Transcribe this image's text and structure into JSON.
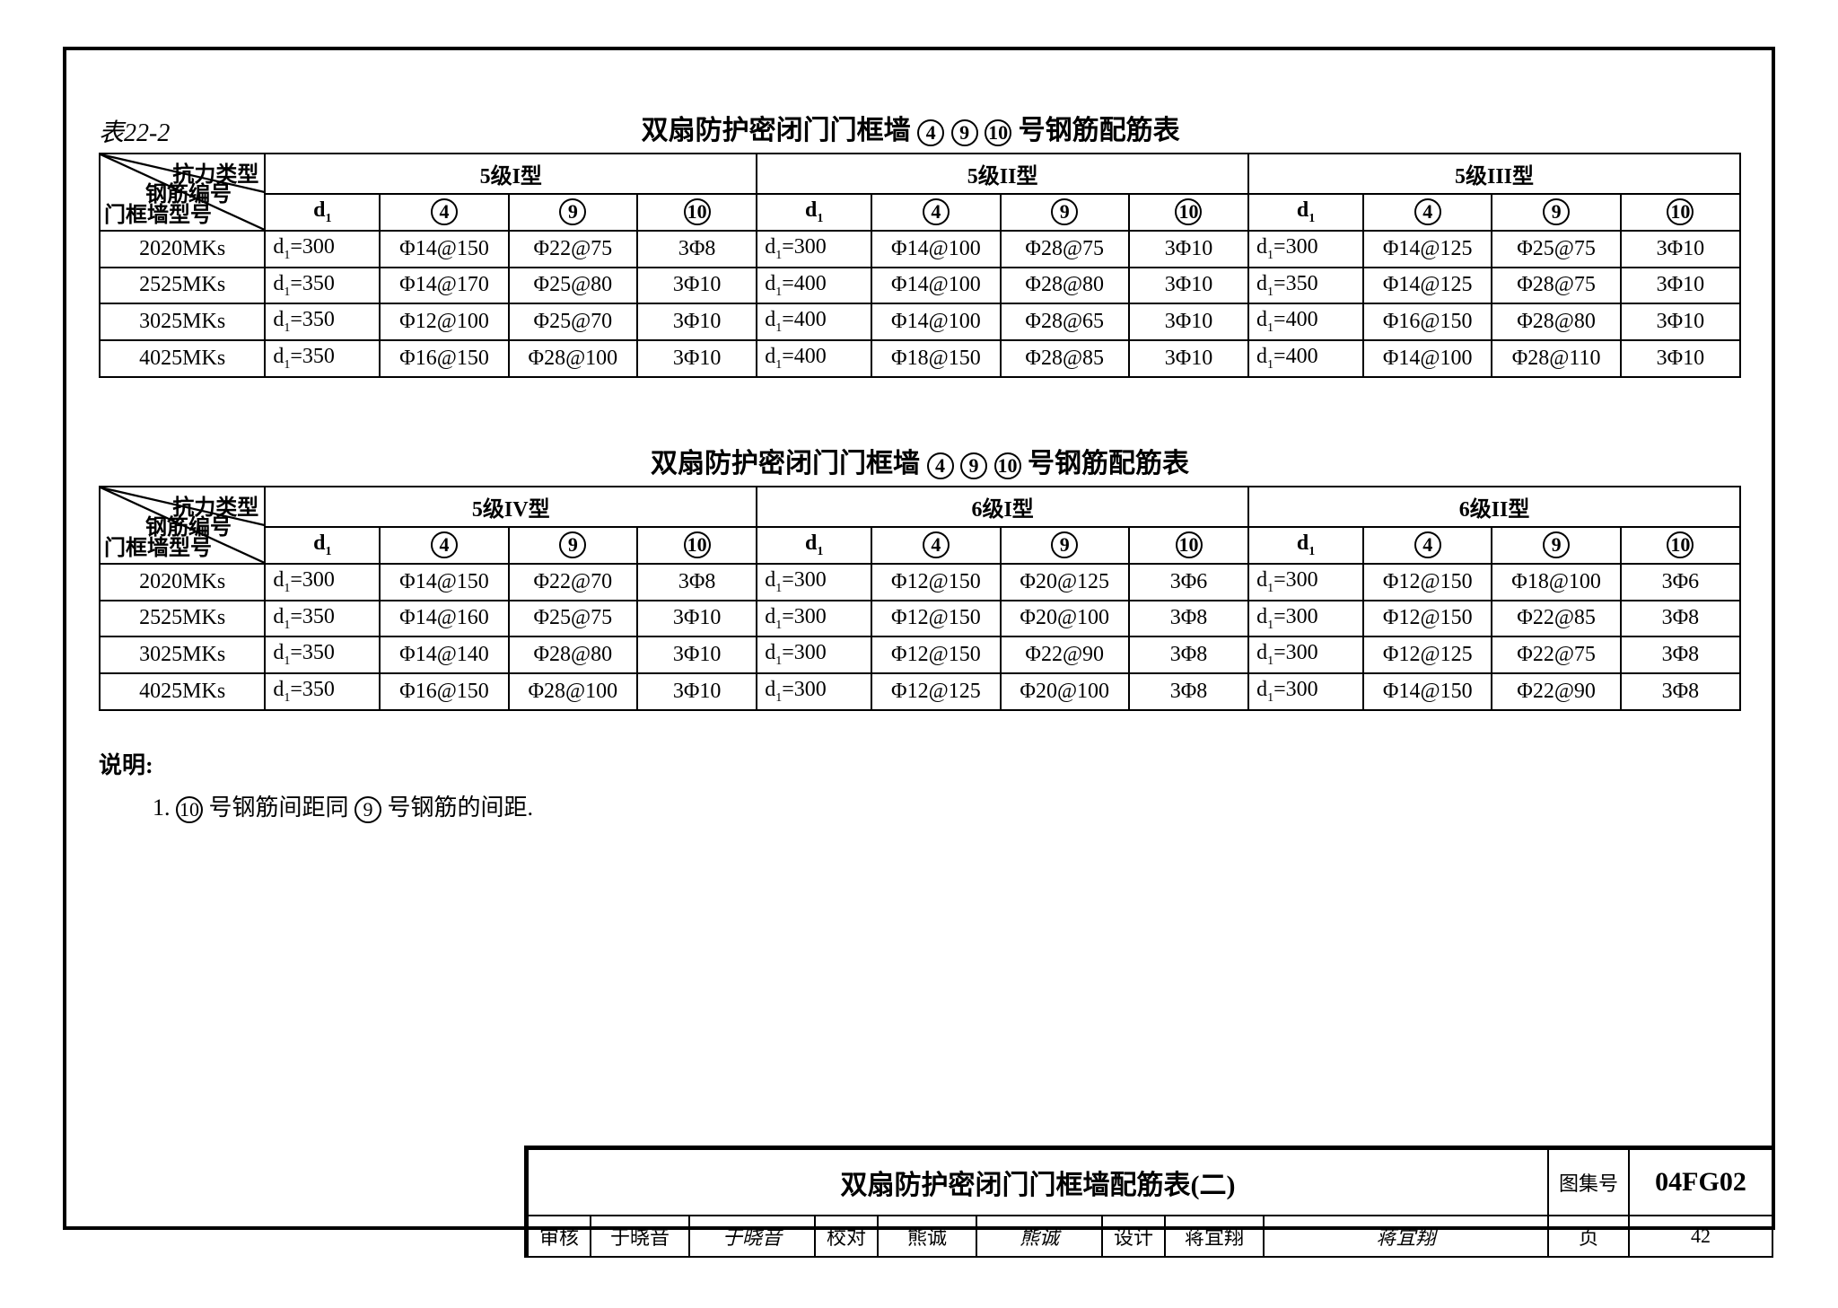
{
  "page": {
    "table_label": "表22-2",
    "title_main": "双扇防护密闭门门框墙④ ⑨ ⑩号钢筋配筋表",
    "title_chars": {
      "prefix": "双扇防护密闭门门框墙",
      "c4": "4",
      "c9": "9",
      "c10": "10",
      "suffix": "号钢筋配筋表"
    },
    "diag_labels": {
      "topright": "抗力类型",
      "mid": "钢筋编号",
      "bottomleft": "门框墙型号"
    },
    "col_d1": "d₁",
    "col_4": "4",
    "col_9": "9",
    "col_10": "10",
    "table1_groups": [
      "5级I型",
      "5级II型",
      "5级III型"
    ],
    "row_labels": [
      "2020MKs",
      "2525MKs",
      "3025MKs",
      "4025MKs"
    ],
    "table1": [
      [
        [
          "d₁=300",
          "Φ14@150",
          "Φ22@75",
          "3Φ8"
        ],
        [
          "d₁=300",
          "Φ14@100",
          "Φ28@75",
          "3Φ10"
        ],
        [
          "d₁=300",
          "Φ14@125",
          "Φ25@75",
          "3Φ10"
        ]
      ],
      [
        [
          "d₁=350",
          "Φ14@170",
          "Φ25@80",
          "3Φ10"
        ],
        [
          "d₁=400",
          "Φ14@100",
          "Φ28@80",
          "3Φ10"
        ],
        [
          "d₁=350",
          "Φ14@125",
          "Φ28@75",
          "3Φ10"
        ]
      ],
      [
        [
          "d₁=350",
          "Φ12@100",
          "Φ25@70",
          "3Φ10"
        ],
        [
          "d₁=400",
          "Φ14@100",
          "Φ28@65",
          "3Φ10"
        ],
        [
          "d₁=400",
          "Φ16@150",
          "Φ28@80",
          "3Φ10"
        ]
      ],
      [
        [
          "d₁=350",
          "Φ16@150",
          "Φ28@100",
          "3Φ10"
        ],
        [
          "d₁=400",
          "Φ18@150",
          "Φ28@85",
          "3Φ10"
        ],
        [
          "d₁=400",
          "Φ14@100",
          "Φ28@110",
          "3Φ10"
        ]
      ]
    ],
    "table2_groups": [
      "5级IV型",
      "6级I型",
      "6级II型"
    ],
    "table2": [
      [
        [
          "d₁=300",
          "Φ14@150",
          "Φ22@70",
          "3Φ8"
        ],
        [
          "d₁=300",
          "Φ12@150",
          "Φ20@125",
          "3Φ6"
        ],
        [
          "d₁=300",
          "Φ12@150",
          "Φ18@100",
          "3Φ6"
        ]
      ],
      [
        [
          "d₁=350",
          "Φ14@160",
          "Φ25@75",
          "3Φ10"
        ],
        [
          "d₁=300",
          "Φ12@150",
          "Φ20@100",
          "3Φ8"
        ],
        [
          "d₁=300",
          "Φ12@150",
          "Φ22@85",
          "3Φ8"
        ]
      ],
      [
        [
          "d₁=350",
          "Φ14@140",
          "Φ28@80",
          "3Φ10"
        ],
        [
          "d₁=300",
          "Φ12@150",
          "Φ22@90",
          "3Φ8"
        ],
        [
          "d₁=300",
          "Φ12@125",
          "Φ22@75",
          "3Φ8"
        ]
      ],
      [
        [
          "d₁=350",
          "Φ16@150",
          "Φ28@100",
          "3Φ10"
        ],
        [
          "d₁=300",
          "Φ12@125",
          "Φ20@100",
          "3Φ8"
        ],
        [
          "d₁=300",
          "Φ14@150",
          "Φ22@90",
          "3Φ8"
        ]
      ]
    ],
    "notes_header": "说明:",
    "note1_prefix": "1.  ",
    "note1_c10": "10",
    "note1_mid": " 号钢筋间距同 ",
    "note1_c9": "9",
    "note1_suffix": " 号钢筋的间距.",
    "titleblock": {
      "main_title": "双扇防护密闭门门框墙配筋表(二)",
      "tujihao_label": "图集号",
      "tujihao_value": "04FG02",
      "shenhe": "审核",
      "shenhe_name": "于晓音",
      "shenhe_sig": "于晓音",
      "jiaodui": "校对",
      "jiaodui_name": "熊诚",
      "jiaodui_sig": "熊诚",
      "sheji": "设计",
      "sheji_name": "蒋宜翔",
      "sheji_sig": "蒋宜翔",
      "ye_label": "页",
      "ye_value": "42"
    }
  }
}
